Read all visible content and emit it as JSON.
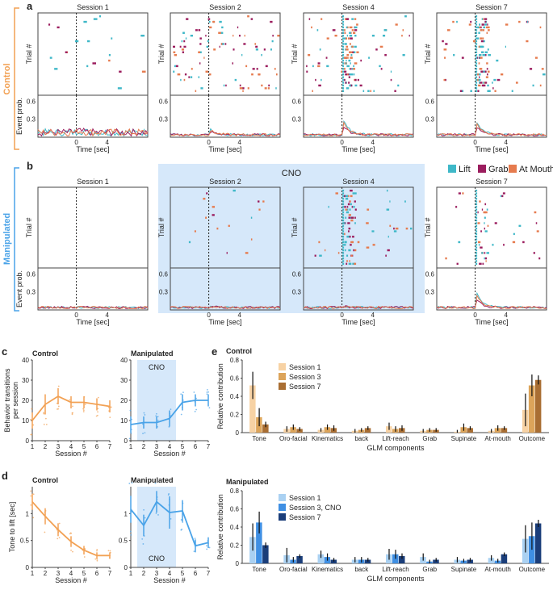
{
  "colors": {
    "lift": "#3fb8c8",
    "grab": "#9b1d5e",
    "atmouth": "#e67b4e",
    "control_orange": "#f2a154",
    "manip_blue": "#4aa3e8",
    "cno_bg": "#d6e8fa",
    "s1_ctrl": "#f7d2a4",
    "s3_ctrl": "#dca45a",
    "s7_ctrl": "#a96e33",
    "s1_man": "#aad1f2",
    "s3_man": "#3f8fe3",
    "s7_man": "#1b3e7a",
    "frame": "#444444",
    "text": "#222222"
  },
  "panel_labels": {
    "a": "a",
    "b": "b",
    "c": "c",
    "d": "d",
    "e": "e"
  },
  "side_labels": {
    "control": "Control",
    "manipulated": "Manipulated"
  },
  "raster": {
    "sessions": [
      "Session 1",
      "Session 2",
      "Session 4",
      "Session 7"
    ],
    "ylabel_top": "Trial #",
    "ylabel_bottom": "Event prob.",
    "xlabel": "Time [sec]",
    "xticks": [
      "0",
      "4"
    ],
    "yticks": [
      "0.6",
      "0.3"
    ],
    "cno_label": "CNO",
    "legend": [
      "Lift",
      "Grab",
      "At Mouth"
    ]
  },
  "chart_data": [
    {
      "type": "line",
      "id": "c-control",
      "title": "Control",
      "xlabel": "Session #",
      "ylabel": "Behavior transitions per session",
      "ylabel_lines": [
        "Behavior transitions",
        "per session"
      ],
      "x": [
        1,
        2,
        3,
        4,
        5,
        6,
        7
      ],
      "y": [
        10,
        18,
        22,
        19,
        19,
        18,
        17
      ],
      "err": [
        4,
        5,
        4,
        3,
        3,
        3,
        3
      ],
      "ylim": [
        0,
        40
      ],
      "yticks": [
        "0",
        "10",
        "20",
        "30",
        "40"
      ],
      "xticks": [
        "1",
        "2",
        "3",
        "4",
        "5",
        "6",
        "7"
      ]
    },
    {
      "type": "line",
      "id": "c-manipulated",
      "title": "Manipulated",
      "xlabel": "Session #",
      "x": [
        1,
        2,
        3,
        4,
        5,
        6,
        7
      ],
      "y": [
        8,
        9,
        9,
        11,
        19,
        20,
        20
      ],
      "err": [
        4,
        3,
        3,
        4,
        4,
        3,
        3
      ],
      "ylim": [
        0,
        40
      ],
      "yticks": [
        "0",
        "10",
        "20",
        "30",
        "40"
      ],
      "xticks": [
        "1",
        "2",
        "3",
        "4",
        "5",
        "6",
        "7"
      ],
      "cno_sessions": [
        2,
        4
      ],
      "cno_label": "CNO"
    },
    {
      "type": "line",
      "id": "d-control",
      "title": "Control",
      "xlabel": "Session #",
      "ylabel": "Tone to lift [sec]",
      "x": [
        1,
        2,
        3,
        4,
        5,
        6,
        7
      ],
      "y": [
        1.22,
        0.95,
        0.7,
        0.48,
        0.32,
        0.22,
        0.22
      ],
      "err": [
        0.15,
        0.15,
        0.12,
        0.1,
        0.08,
        0.06,
        0.06
      ],
      "ylim": [
        0,
        1.5
      ],
      "yticks": [
        "0",
        "0.5",
        "1"
      ],
      "xticks": [
        "1",
        "2",
        "3",
        "4",
        "5",
        "6",
        "7"
      ]
    },
    {
      "type": "line",
      "id": "d-manipulated",
      "title": "Manipulated",
      "xlabel": "Session #",
      "x": [
        1,
        2,
        3,
        4,
        5,
        6,
        7
      ],
      "y": [
        1.08,
        0.78,
        1.22,
        1.02,
        1.05,
        0.4,
        0.46
      ],
      "err": [
        0.25,
        0.2,
        0.2,
        0.3,
        0.2,
        0.12,
        0.1
      ],
      "ylim": [
        0,
        1.5
      ],
      "yticks": [
        "0",
        "0.5",
        "1"
      ],
      "xticks": [
        "1",
        "2",
        "3",
        "4",
        "5",
        "6",
        "7"
      ],
      "cno_sessions": [
        2,
        4
      ],
      "cno_label": "CNO"
    },
    {
      "type": "bar",
      "id": "e-control",
      "title": "Control",
      "xlabel": "GLM components",
      "ylabel": "Relative contribution",
      "categories": [
        "Tone",
        "Oro-facial",
        "Kinematics",
        "back",
        "Lift-reach",
        "Grab",
        "Supinate",
        "At-mouth",
        "Outcome"
      ],
      "series": [
        {
          "name": "Session 1",
          "values": [
            0.52,
            0.04,
            0.03,
            0.02,
            0.07,
            0.02,
            0.01,
            0.02,
            0.25
          ],
          "err": [
            0.15,
            0.03,
            0.02,
            0.02,
            0.04,
            0.02,
            0.02,
            0.02,
            0.18
          ]
        },
        {
          "name": "Session 3",
          "values": [
            0.17,
            0.06,
            0.06,
            0.03,
            0.04,
            0.03,
            0.06,
            0.05,
            0.52
          ],
          "err": [
            0.1,
            0.03,
            0.03,
            0.02,
            0.03,
            0.02,
            0.04,
            0.03,
            0.12
          ]
        },
        {
          "name": "Session 7",
          "values": [
            0.09,
            0.04,
            0.05,
            0.05,
            0.05,
            0.03,
            0.05,
            0.05,
            0.58
          ],
          "err": [
            0.03,
            0.02,
            0.03,
            0.02,
            0.03,
            0.02,
            0.02,
            0.02,
            0.05
          ]
        }
      ],
      "ylim": [
        0,
        0.8
      ],
      "yticks": [
        "0",
        "0.2",
        "0.4",
        "0.6",
        "0.8"
      ]
    },
    {
      "type": "bar",
      "id": "e-manipulated",
      "title": "Manipulated",
      "xlabel": "GLM components",
      "ylabel": "Relative contribution",
      "categories": [
        "Tone",
        "Oro-facial",
        "Kinematics",
        "back",
        "Lift-reach",
        "Grab",
        "Supinate",
        "At-mouth",
        "Outcome"
      ],
      "series": [
        {
          "name": "Session 1",
          "values": [
            0.29,
            0.09,
            0.1,
            0.04,
            0.1,
            0.07,
            0.04,
            0.06,
            0.27
          ],
          "err": [
            0.15,
            0.08,
            0.04,
            0.03,
            0.06,
            0.04,
            0.03,
            0.03,
            0.15
          ]
        },
        {
          "name": "Session 3, CNO",
          "values": [
            0.45,
            0.04,
            0.07,
            0.04,
            0.1,
            0.02,
            0.03,
            0.03,
            0.3
          ],
          "err": [
            0.12,
            0.03,
            0.04,
            0.03,
            0.05,
            0.02,
            0.02,
            0.02,
            0.15
          ]
        },
        {
          "name": "Session 7",
          "values": [
            0.2,
            0.08,
            0.04,
            0.04,
            0.08,
            0.04,
            0.04,
            0.1,
            0.44
          ],
          "err": [
            0.03,
            0.02,
            0.02,
            0.02,
            0.03,
            0.02,
            0.02,
            0.02,
            0.04
          ]
        }
      ],
      "ylim": [
        0,
        0.8
      ],
      "yticks": [
        "0",
        "0.2",
        "0.4",
        "0.6",
        "0.8"
      ]
    }
  ]
}
